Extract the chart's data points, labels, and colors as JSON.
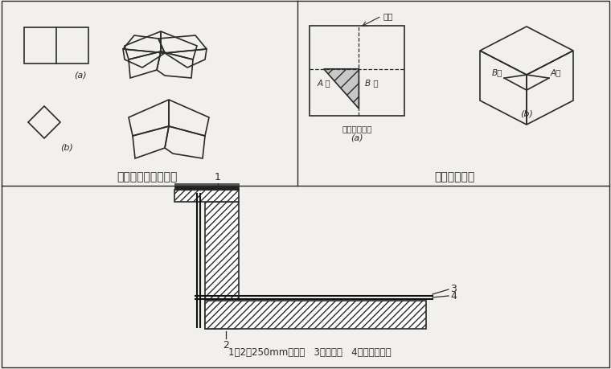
{
  "bg_color": "#f2f0ec",
  "line_color": "#2a2a2a",
  "section1_title": "阳角附加层剪裁方法",
  "section2_title": "阴角剪裁方法",
  "label_a": "(a)",
  "label_b": "(b)",
  "label_a2": "(a)",
  "label_b2": "(b)",
  "fold_line": "折线",
  "A_line_left": "A 线",
  "B_line_right": "B 线",
  "A_xian": "A线",
  "B_xian": "B线",
  "shadow_text": "阴影部分剪去",
  "bottom_label": "1和2、250mm附加层   3、防水层   4、混凝土垃层",
  "num1": "1",
  "num2": "2",
  "num3": "3",
  "num4": "4"
}
